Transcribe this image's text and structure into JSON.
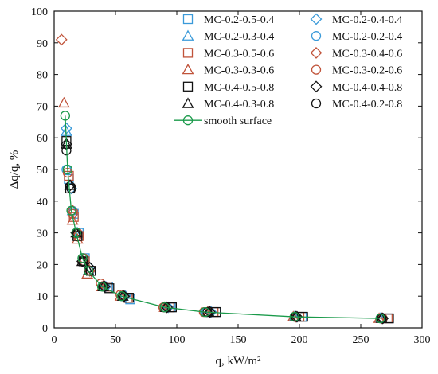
{
  "chart_data": {
    "type": "scatter",
    "title": "",
    "xlabel": "q, kW/m²",
    "ylabel": "Δq/q, %",
    "xlim": [
      0,
      300
    ],
    "ylim": [
      0,
      100
    ],
    "xticks": [
      "0",
      "50",
      "100",
      "150",
      "200",
      "250",
      "300"
    ],
    "yticks": [
      "0",
      "10",
      "20",
      "30",
      "40",
      "50",
      "60",
      "70",
      "80",
      "90",
      "100"
    ],
    "grid": false,
    "legend_placement": "top-right",
    "series": [
      {
        "name": "MC-0.2-0.5-0.4",
        "marker": "square",
        "color": "#3a9ad9",
        "points": [
          [
            12,
            47
          ],
          [
            16,
            36
          ],
          [
            20,
            30
          ],
          [
            25,
            22
          ],
          [
            30,
            18
          ],
          [
            44,
            13
          ],
          [
            62,
            9
          ],
          [
            95,
            6.5
          ],
          [
            132,
            5
          ],
          [
            202,
            3.5
          ],
          [
            273,
            3
          ]
        ]
      },
      {
        "name": "MC-0.2-0.4-0.4",
        "marker": "diamond",
        "color": "#3a9ad9",
        "points": [
          [
            10,
            63
          ],
          [
            14,
            44
          ],
          [
            19,
            30
          ],
          [
            24,
            21
          ],
          [
            29,
            19
          ],
          [
            42,
            13
          ],
          [
            58,
            10
          ],
          [
            93,
            6.5
          ],
          [
            128,
            5
          ],
          [
            198,
            3.5
          ],
          [
            268,
            3
          ]
        ]
      },
      {
        "name": "MC-0.2-0.3-0.4",
        "marker": "triangle",
        "color": "#3a9ad9",
        "points": [
          [
            10,
            62
          ],
          [
            15,
            37
          ],
          [
            19,
            29
          ],
          [
            23,
            21
          ],
          [
            28,
            18
          ],
          [
            41,
            13
          ],
          [
            56,
            10
          ],
          [
            91,
            6.5
          ],
          [
            126,
            5
          ],
          [
            196,
            3.5
          ],
          [
            266,
            3
          ]
        ]
      },
      {
        "name": "MC-0.2-0.2-0.4",
        "marker": "circle",
        "color": "#3a9ad9",
        "points": [
          [
            10,
            50
          ],
          [
            15,
            37
          ],
          [
            19,
            30
          ],
          [
            24,
            22
          ],
          [
            29,
            18
          ],
          [
            40,
            13
          ],
          [
            55,
            10
          ],
          [
            90,
            6.5
          ],
          [
            124,
            5
          ],
          [
            196,
            3.5
          ],
          [
            266,
            3
          ]
        ]
      },
      {
        "name": "MC-0.3-0.5-0.6",
        "marker": "square",
        "color": "#c0533a",
        "points": [
          [
            12,
            48
          ],
          [
            16,
            35
          ],
          [
            20,
            29
          ],
          [
            25,
            21
          ],
          [
            30,
            18
          ],
          [
            43,
            13
          ],
          [
            60,
            9.5
          ],
          [
            94,
            6.5
          ],
          [
            130,
            5
          ],
          [
            200,
            3.5
          ],
          [
            272,
            3
          ]
        ]
      },
      {
        "name": "MC-0.3-0.4-0.6",
        "marker": "diamond",
        "color": "#c0533a",
        "points": [
          [
            6,
            91
          ],
          [
            15,
            37
          ],
          [
            19,
            29
          ],
          [
            24,
            21
          ],
          [
            29,
            18
          ],
          [
            41,
            13
          ],
          [
            57,
            10
          ],
          [
            92,
            6.5
          ],
          [
            127,
            5
          ],
          [
            197,
            3.5
          ],
          [
            267,
            3
          ]
        ]
      },
      {
        "name": "MC-0.3-0.3-0.6",
        "marker": "triangle",
        "color": "#c0533a",
        "points": [
          [
            8,
            71
          ],
          [
            15,
            34
          ],
          [
            19,
            28
          ],
          [
            23,
            21
          ],
          [
            27,
            17
          ],
          [
            39,
            13
          ],
          [
            54,
            10
          ],
          [
            90,
            6.5
          ],
          [
            125,
            5
          ],
          [
            195,
            3.5
          ],
          [
            265,
            3
          ]
        ]
      },
      {
        "name": "MC-0.3-0.2-0.6",
        "marker": "circle",
        "color": "#c0533a",
        "points": [
          [
            11,
            49
          ],
          [
            15,
            36
          ],
          [
            19,
            30
          ],
          [
            24,
            22
          ],
          [
            28,
            18
          ],
          [
            38,
            14
          ],
          [
            54,
            10.5
          ],
          [
            89,
            6.5
          ],
          [
            122,
            5
          ],
          [
            196,
            3.5
          ],
          [
            268,
            3
          ]
        ]
      },
      {
        "name": "MC-0.4-0.5-0.8",
        "marker": "square",
        "color": "#111111",
        "points": [
          [
            10,
            59
          ],
          [
            13,
            44
          ],
          [
            19,
            29
          ],
          [
            24,
            21
          ],
          [
            30,
            18
          ],
          [
            45,
            12.5
          ],
          [
            61,
            9.5
          ],
          [
            96,
            6.5
          ],
          [
            132,
            5
          ],
          [
            203,
            3.5
          ],
          [
            273,
            3
          ]
        ]
      },
      {
        "name": "MC-0.4-0.4-0.8",
        "marker": "diamond",
        "color": "#111111",
        "points": [
          [
            10,
            58
          ],
          [
            13,
            45
          ],
          [
            18,
            30
          ],
          [
            23,
            21
          ],
          [
            29,
            19
          ],
          [
            41,
            13
          ],
          [
            57,
            10
          ],
          [
            92,
            6.5
          ],
          [
            127,
            5
          ],
          [
            198,
            3.5
          ],
          [
            268,
            3
          ]
        ]
      },
      {
        "name": "MC-0.4-0.3-0.8",
        "marker": "triangle",
        "color": "#111111",
        "points": [
          [
            10,
            58
          ],
          [
            13,
            45
          ],
          [
            18,
            30
          ],
          [
            23,
            21
          ],
          [
            28,
            18
          ],
          [
            40,
            13
          ],
          [
            56,
            10
          ],
          [
            91,
            6.5
          ],
          [
            126,
            5
          ],
          [
            197,
            3.5
          ],
          [
            267,
            3
          ]
        ]
      },
      {
        "name": "MC-0.4-0.2-0.8",
        "marker": "circle",
        "color": "#111111",
        "points": [
          [
            10,
            56
          ],
          [
            14,
            44
          ],
          [
            18,
            30
          ],
          [
            24,
            21
          ],
          [
            28,
            18
          ],
          [
            40,
            13
          ],
          [
            56,
            10
          ],
          [
            90,
            6.5
          ],
          [
            125,
            5
          ],
          [
            197,
            3.5
          ],
          [
            267,
            3
          ]
        ]
      }
    ],
    "curve": {
      "name": "smooth surface",
      "marker": "circle",
      "color": "#1a9a4a",
      "points": [
        [
          9,
          67
        ],
        [
          11,
          50
        ],
        [
          14,
          37
        ],
        [
          18,
          30
        ],
        [
          23,
          22
        ],
        [
          28,
          18
        ],
        [
          39,
          13
        ],
        [
          55,
          10
        ],
        [
          90,
          6.5
        ],
        [
          123,
          5
        ],
        [
          196,
          3.5
        ],
        [
          266,
          3
        ]
      ]
    }
  }
}
